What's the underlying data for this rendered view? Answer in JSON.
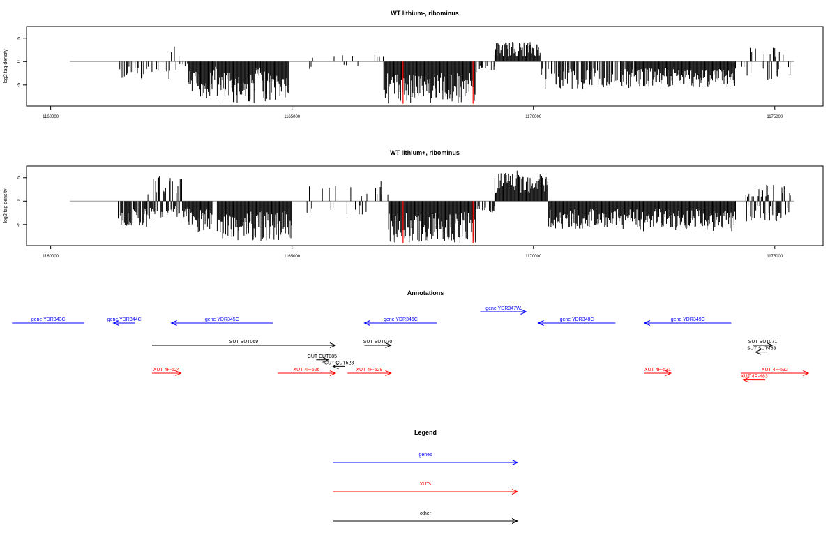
{
  "chart_data": [
    {
      "type": "bar",
      "title": "WT lithium-, ribominus",
      "xlabel": "",
      "ylabel": "log2 tag density",
      "xlim": [
        1159500,
        1176000
      ],
      "ylim": [
        -9.5,
        7.5
      ],
      "x_ticks": [
        1160000,
        1165000,
        1170000,
        1175000
      ],
      "x_tick_labels": [
        "1160000",
        "1165000",
        "1170000",
        "1175000"
      ],
      "y_ticks": [
        -5,
        0,
        5
      ],
      "y_tick_labels": [
        "-5",
        "0",
        "5"
      ],
      "baseline": {
        "from": 1160400,
        "to": 1175400
      },
      "segments": [
        {
          "start": 1161400,
          "end": 1162500,
          "min": -3.8,
          "max": 0.8,
          "density": 0.35,
          "strand": "neg"
        },
        {
          "start": 1162500,
          "end": 1162850,
          "min": -2.5,
          "max": 3.5,
          "density": 0.25,
          "strand": "mixed"
        },
        {
          "start": 1162850,
          "end": 1163350,
          "min": -8.0,
          "max": 1.5,
          "density": 1.0,
          "strand": "neg"
        },
        {
          "start": 1163350,
          "end": 1163450,
          "min": -4.0,
          "max": 0,
          "density": 0.6,
          "strand": "neg"
        },
        {
          "start": 1163450,
          "end": 1164250,
          "min": -9.0,
          "max": 0,
          "density": 1.0,
          "strand": "neg"
        },
        {
          "start": 1164250,
          "end": 1164350,
          "min": -4.0,
          "max": 0,
          "density": 0.6,
          "strand": "neg"
        },
        {
          "start": 1164350,
          "end": 1164950,
          "min": -8.5,
          "max": 0,
          "density": 1.0,
          "strand": "neg"
        },
        {
          "start": 1165300,
          "end": 1166500,
          "min": -2.0,
          "max": 1.5,
          "density": 0.05,
          "strand": "mixed"
        },
        {
          "start": 1166700,
          "end": 1166900,
          "min": -1.0,
          "max": 2.0,
          "density": 0.3,
          "strand": "pos"
        },
        {
          "start": 1166900,
          "end": 1168800,
          "min": -9.0,
          "max": 1.0,
          "density": 1.0,
          "strand": "neg"
        },
        {
          "start": 1168800,
          "end": 1169200,
          "min": -2.5,
          "max": 0,
          "density": 0.35,
          "strand": "neg"
        },
        {
          "start": 1169200,
          "end": 1170150,
          "min": -0.5,
          "max": 4.3,
          "density": 1.0,
          "strand": "pos"
        },
        {
          "start": 1170150,
          "end": 1172200,
          "min": -6.0,
          "max": 0,
          "density": 0.7,
          "strand": "neg"
        },
        {
          "start": 1172200,
          "end": 1174200,
          "min": -5.5,
          "max": 2.5,
          "density": 1.0,
          "strand": "neg"
        },
        {
          "start": 1174300,
          "end": 1175350,
          "min": -4.5,
          "max": 3.0,
          "density": 0.4,
          "strand": "mixed"
        }
      ],
      "highlight_lines": [
        {
          "x": 1167300,
          "y": -9.0,
          "color": "#ff0000"
        },
        {
          "x": 1168750,
          "y": -9.0,
          "color": "#ff0000"
        }
      ]
    },
    {
      "type": "bar",
      "title": "WT lithium+, ribominus",
      "xlabel": "",
      "ylabel": "log2 tag density",
      "xlim": [
        1159500,
        1176000
      ],
      "ylim": [
        -9.5,
        7.5
      ],
      "x_ticks": [
        1160000,
        1165000,
        1170000,
        1175000
      ],
      "x_tick_labels": [
        "1160000",
        "1165000",
        "1170000",
        "1175000"
      ],
      "y_ticks": [
        -5,
        0,
        5
      ],
      "y_tick_labels": [
        "-5",
        "0",
        "5"
      ],
      "baseline": {
        "from": 1160400,
        "to": 1175400
      },
      "segments": [
        {
          "start": 1161400,
          "end": 1162000,
          "min": -5.5,
          "max": 0.5,
          "density": 0.9,
          "strand": "neg"
        },
        {
          "start": 1162000,
          "end": 1162850,
          "min": -4.0,
          "max": 5.5,
          "density": 1.0,
          "strand": "mixed"
        },
        {
          "start": 1162850,
          "end": 1163350,
          "min": -7.0,
          "max": 0,
          "density": 1.0,
          "strand": "neg"
        },
        {
          "start": 1163450,
          "end": 1165000,
          "min": -8.5,
          "max": 0,
          "density": 1.0,
          "strand": "neg"
        },
        {
          "start": 1165200,
          "end": 1166700,
          "min": -3.0,
          "max": 4.0,
          "density": 0.25,
          "strand": "mixed"
        },
        {
          "start": 1166700,
          "end": 1167000,
          "min": -2.0,
          "max": 4.5,
          "density": 0.5,
          "strand": "pos"
        },
        {
          "start": 1167000,
          "end": 1168800,
          "min": -9.0,
          "max": 1.5,
          "density": 1.0,
          "strand": "neg"
        },
        {
          "start": 1168800,
          "end": 1169200,
          "min": -3.0,
          "max": 0,
          "density": 0.45,
          "strand": "neg"
        },
        {
          "start": 1169200,
          "end": 1170300,
          "min": -0.5,
          "max": 6.5,
          "density": 1.0,
          "strand": "pos"
        },
        {
          "start": 1170300,
          "end": 1172200,
          "min": -6.0,
          "max": 0,
          "density": 1.0,
          "strand": "neg"
        },
        {
          "start": 1172200,
          "end": 1174200,
          "min": -6.5,
          "max": 0.5,
          "density": 1.0,
          "strand": "neg"
        },
        {
          "start": 1174400,
          "end": 1175350,
          "min": -4.5,
          "max": 3.5,
          "density": 0.9,
          "strand": "mixed"
        }
      ],
      "highlight_lines": [
        {
          "x": 1167300,
          "y": -9.0,
          "color": "#ff0000"
        },
        {
          "x": 1168750,
          "y": -9.0,
          "color": "#ff0000"
        }
      ]
    },
    {
      "type": "annotation_track",
      "title": "Annotations",
      "xlim": [
        1159500,
        1176000
      ],
      "features": [
        {
          "label": "gene YDR343C",
          "start": 1159200,
          "end": 1160700,
          "row": 0,
          "strand": "-",
          "color": "#0000ff",
          "arrow": false
        },
        {
          "label": "gene YDR344C",
          "start": 1161300,
          "end": 1161750,
          "row": 0,
          "strand": "-",
          "color": "#0000ff",
          "arrow": true
        },
        {
          "label": "gene YDR345C",
          "start": 1162500,
          "end": 1164600,
          "row": 0,
          "strand": "-",
          "color": "#0000ff",
          "arrow": true
        },
        {
          "label": "gene YDR346C",
          "start": 1166500,
          "end": 1168000,
          "row": 0,
          "strand": "-",
          "color": "#0000ff",
          "arrow": true
        },
        {
          "label": "gene YDR347W",
          "start": 1168900,
          "end": 1169850,
          "row": -0.5,
          "strand": "+",
          "color": "#0000ff",
          "arrow": true
        },
        {
          "label": "gene YDR348C",
          "start": 1170100,
          "end": 1171700,
          "row": 0,
          "strand": "-",
          "color": "#0000ff",
          "arrow": true
        },
        {
          "label": "gene YDR349C",
          "start": 1172300,
          "end": 1174100,
          "row": 0,
          "strand": "-",
          "color": "#0000ff",
          "arrow": true
        },
        {
          "label": "SUT SUT069",
          "start": 1162100,
          "end": 1165900,
          "row": 1,
          "strand": "+",
          "color": "#000000",
          "arrow": true
        },
        {
          "label": "SUT SUT070",
          "start": 1166500,
          "end": 1167050,
          "row": 1,
          "strand": "+",
          "color": "#000000",
          "arrow": true
        },
        {
          "label": "CUT CUT085",
          "start": 1165500,
          "end": 1165750,
          "row": 1.65,
          "strand": "+",
          "color": "#000000",
          "arrow": true
        },
        {
          "label": "CUT CUT523",
          "start": 1165850,
          "end": 1166100,
          "row": 1.95,
          "strand": "-",
          "color": "#000000",
          "arrow": true
        },
        {
          "label": "SUT SUT071",
          "start": 1174550,
          "end": 1174950,
          "row": 1,
          "strand": "+",
          "color": "#000000",
          "arrow": true
        },
        {
          "label": "SUT SUT483",
          "start": 1174600,
          "end": 1174850,
          "row": 1.3,
          "strand": "-",
          "color": "#000000",
          "arrow": true
        },
        {
          "label": "XUT 4F-524",
          "start": 1162100,
          "end": 1162700,
          "row": 2.25,
          "strand": "+",
          "color": "#ff0000",
          "arrow": true
        },
        {
          "label": "XUT 4F-526",
          "start": 1164700,
          "end": 1165900,
          "row": 2.25,
          "strand": "+",
          "color": "#ff0000",
          "arrow": true
        },
        {
          "label": "XUT 4F-529",
          "start": 1166150,
          "end": 1167050,
          "row": 2.25,
          "strand": "+",
          "color": "#ff0000",
          "arrow": true
        },
        {
          "label": "XUT 4F-531",
          "start": 1172300,
          "end": 1172850,
          "row": 2.25,
          "strand": "+",
          "color": "#ff0000",
          "arrow": true
        },
        {
          "label": "XUT 4F-532",
          "start": 1174300,
          "end": 1175700,
          "row": 2.25,
          "strand": "+",
          "color": "#ff0000",
          "arrow": true
        },
        {
          "label": "XUT 4R-483",
          "start": 1174350,
          "end": 1174800,
          "row": 2.55,
          "strand": "-",
          "color": "#ff0000",
          "arrow": true
        }
      ]
    },
    {
      "type": "legend",
      "title": "Legend",
      "entries": [
        {
          "label": "genes",
          "color": "#0000ff"
        },
        {
          "label": "XUTs",
          "color": "#ff0000"
        },
        {
          "label": "other",
          "color": "#000000"
        }
      ]
    }
  ]
}
